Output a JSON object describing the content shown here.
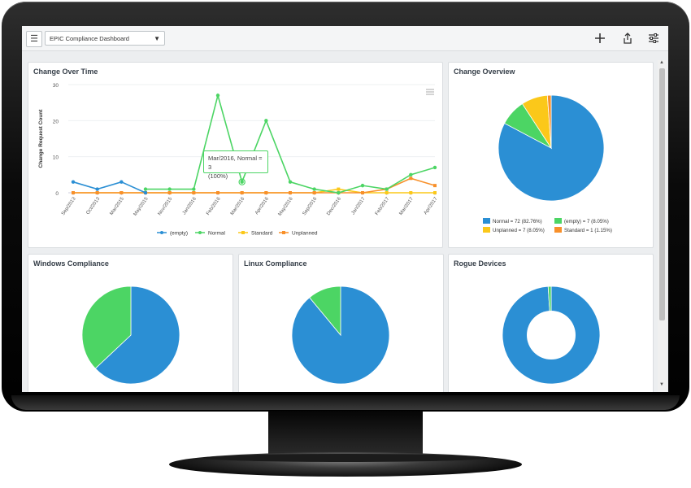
{
  "header": {
    "dashboard_select": "EPIC Compliance Dashboard"
  },
  "icons": {
    "menu": "menu-icon",
    "add": "plus-icon",
    "share": "share-icon",
    "filters": "sliders-icon"
  },
  "colors": {
    "empty": "#2b8fd4",
    "normal": "#4cd564",
    "standard": "#fbc81a",
    "unplanned": "#f8902a"
  },
  "widgets": {
    "change_over_time": {
      "title": "Change Over Time",
      "tooltip_line1": "Mar/2016, Normal = 3",
      "tooltip_line2": "(100%)"
    },
    "change_overview": {
      "title": "Change Overview"
    },
    "windows": {
      "title": "Windows Compliance"
    },
    "linux": {
      "title": "Linux Compliance"
    },
    "rogue": {
      "title": "Rogue Devices"
    }
  },
  "chart_data": [
    {
      "type": "line",
      "title": "Change Over Time",
      "xlabel": "",
      "ylabel": "Change Request Count",
      "ylim": [
        0,
        30
      ],
      "yticks": [
        0,
        10,
        20,
        30
      ],
      "categories": [
        "Sep/2013",
        "Oct/2013",
        "Mar/2015",
        "May/2015",
        "Nov/2015",
        "Jan/2016",
        "Feb/2016",
        "Mar/2016",
        "Apr/2016",
        "May/2016",
        "Sep/2016",
        "Dec/2016",
        "Jan/2017",
        "Feb/2017",
        "Mar/2017",
        "Apr/2017"
      ],
      "series": [
        {
          "name": "(empty)",
          "color": "#2b8fd4",
          "values": [
            3,
            1,
            3,
            0,
            null,
            null,
            null,
            null,
            null,
            null,
            null,
            null,
            null,
            null,
            null,
            null
          ]
        },
        {
          "name": "Normal",
          "color": "#4cd564",
          "values": [
            null,
            null,
            null,
            1,
            1,
            1,
            27,
            3,
            20,
            3,
            1,
            0,
            2,
            1,
            5,
            7
          ]
        },
        {
          "name": "Standard",
          "color": "#fbc81a",
          "values": [
            0,
            0,
            0,
            0,
            0,
            0,
            0,
            0,
            0,
            0,
            0,
            1,
            0,
            0,
            0,
            0
          ]
        },
        {
          "name": "Unplanned",
          "color": "#f8902a",
          "values": [
            0,
            0,
            0,
            0,
            0,
            0,
            0,
            0,
            0,
            0,
            0,
            0,
            0,
            1,
            4,
            2
          ]
        }
      ],
      "legend": "bottom"
    },
    {
      "type": "pie",
      "title": "Change Overview",
      "slices": [
        {
          "label": "Normal = 72 (82.76%)",
          "value": 72,
          "color": "#2b8fd4"
        },
        {
          "label": "(empty) = 7 (8.05%)",
          "value": 7,
          "color": "#4cd564"
        },
        {
          "label": "Unplanned = 7 (8.05%)",
          "value": 7,
          "color": "#fbc81a"
        },
        {
          "label": "Standard = 1 (1.15%)",
          "value": 1,
          "color": "#f8902a"
        }
      ],
      "legend": "bottom"
    },
    {
      "type": "pie",
      "title": "Windows Compliance",
      "slices": [
        {
          "value": 63,
          "color": "#2b8fd4"
        },
        {
          "value": 37,
          "color": "#4cd564"
        }
      ]
    },
    {
      "type": "pie",
      "title": "Linux Compliance",
      "slices": [
        {
          "value": 89,
          "color": "#2b8fd4"
        },
        {
          "value": 11,
          "color": "#4cd564"
        }
      ]
    },
    {
      "type": "pie",
      "title": "Rogue Devices",
      "donut": true,
      "slices": [
        {
          "value": 99,
          "color": "#2b8fd4"
        },
        {
          "value": 1,
          "color": "#4cd564"
        }
      ]
    }
  ]
}
